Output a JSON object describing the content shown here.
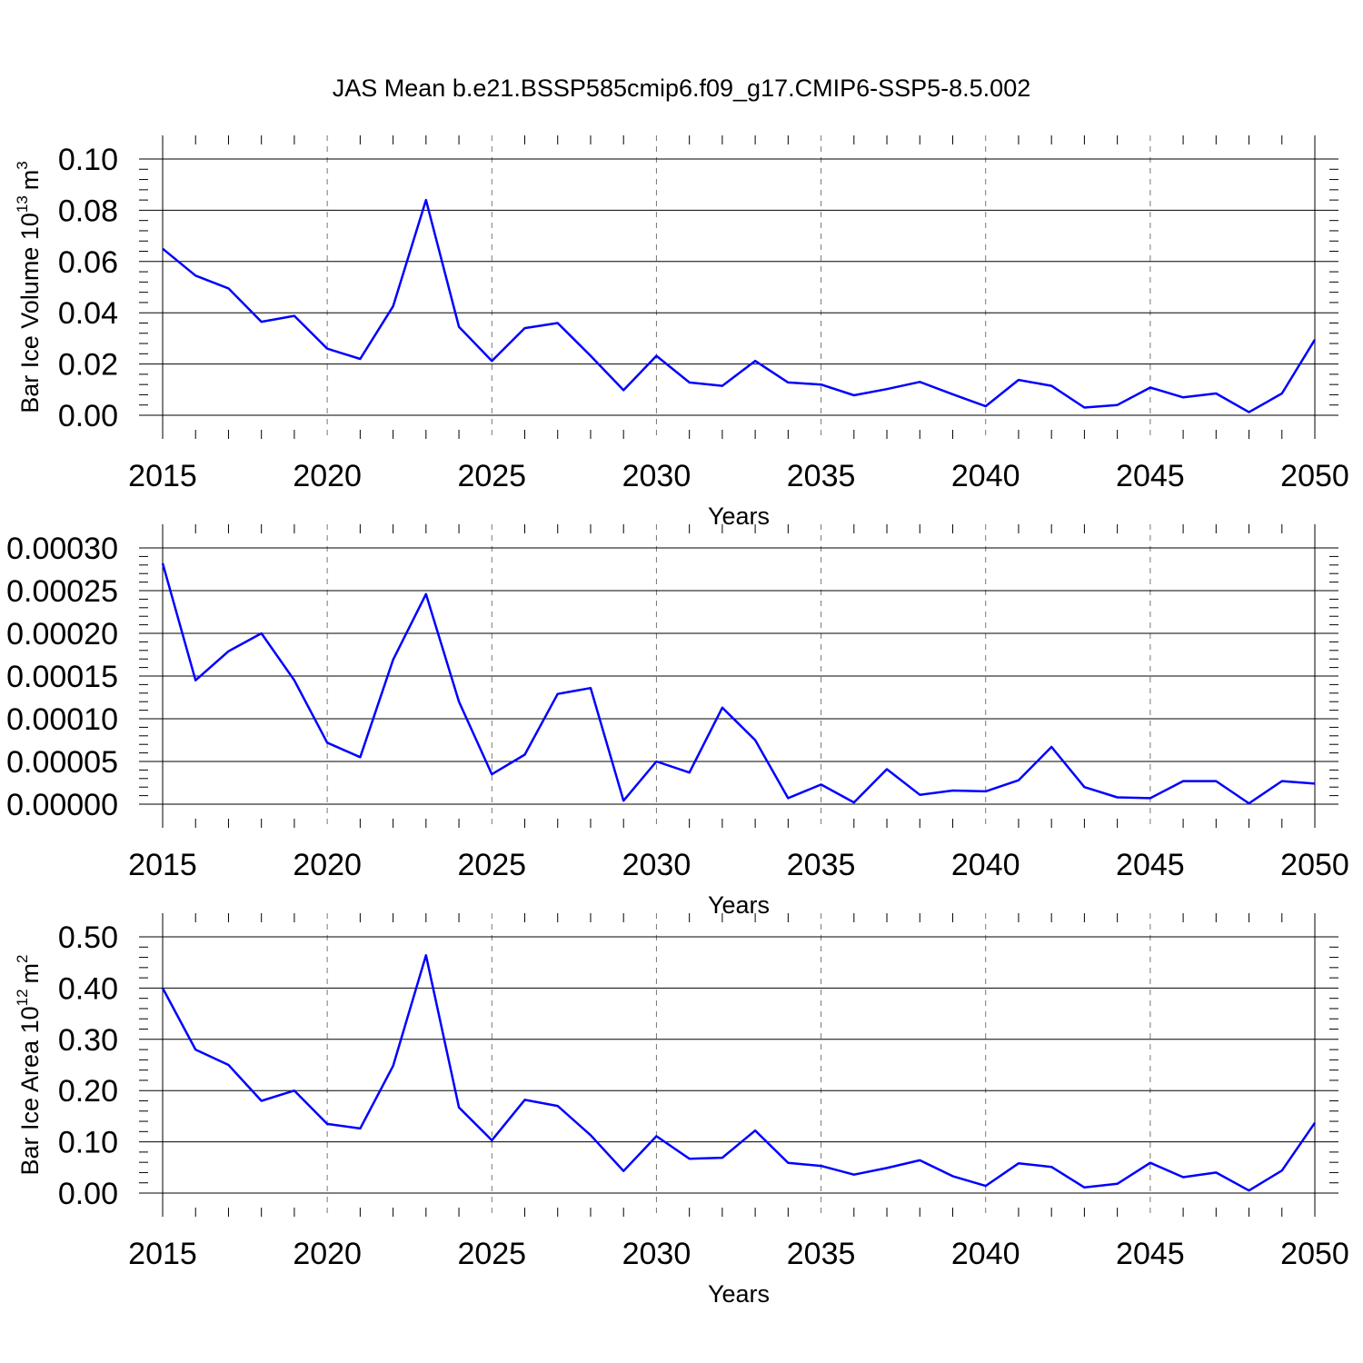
{
  "title": "JAS Mean b.e21.BSSP585cmip6.f09_g17.CMIP6-SSP5-8.5.002",
  "chart_data": [
    {
      "type": "line",
      "xlabel": "Years",
      "ylabel": "Bar Ice Volume 10",
      "ylabel_sup": "13",
      "ylabel_unit": "m",
      "ylabel_unit_sup": "3",
      "xlim": [
        2015,
        2050
      ],
      "ylim": [
        0,
        0.1
      ],
      "xticks": [
        "2015",
        "2020",
        "2025",
        "2030",
        "2035",
        "2040",
        "2045",
        "2050"
      ],
      "yticks": [
        "0.00",
        "0.02",
        "0.04",
        "0.06",
        "0.08",
        "0.10"
      ],
      "grid": "dashed vertical at major x ticks",
      "line_color": "#0000ff",
      "x": [
        2015,
        2016,
        2017,
        2018,
        2019,
        2020,
        2021,
        2022,
        2023,
        2024,
        2025,
        2026,
        2027,
        2028,
        2029,
        2030,
        2031,
        2032,
        2033,
        2034,
        2035,
        2036,
        2037,
        2038,
        2039,
        2040,
        2041,
        2042,
        2043,
        2044,
        2045,
        2046,
        2047,
        2048,
        2049,
        2050
      ],
      "y": [
        0.065,
        0.0545,
        0.0495,
        0.0365,
        0.0388,
        0.026,
        0.022,
        0.0425,
        0.084,
        0.0345,
        0.0212,
        0.034,
        0.036,
        0.0232,
        0.0098,
        0.0232,
        0.0128,
        0.0115,
        0.0212,
        0.0128,
        0.012,
        0.0078,
        0.0102,
        0.013,
        0.0082,
        0.0035,
        0.0138,
        0.0115,
        0.003,
        0.004,
        0.0108,
        0.007,
        0.0085,
        0.0012,
        0.0085,
        0.0295
      ]
    },
    {
      "type": "line",
      "xlabel": "Years",
      "ylabel": "",
      "xlim": [
        2015,
        2050
      ],
      "ylim": [
        0,
        0.0003
      ],
      "xticks": [
        "2015",
        "2020",
        "2025",
        "2030",
        "2035",
        "2040",
        "2045",
        "2050"
      ],
      "yticks": [
        "0.00000",
        "0.00005",
        "0.00010",
        "0.00015",
        "0.00020",
        "0.00025",
        "0.00030"
      ],
      "grid": "dashed vertical at major x ticks",
      "line_color": "#0000ff",
      "x": [
        2015,
        2016,
        2017,
        2018,
        2019,
        2020,
        2021,
        2022,
        2023,
        2024,
        2025,
        2026,
        2027,
        2028,
        2029,
        2030,
        2031,
        2032,
        2033,
        2034,
        2035,
        2036,
        2037,
        2038,
        2039,
        2040,
        2041,
        2042,
        2043,
        2044,
        2045,
        2046,
        2047,
        2048,
        2049,
        2050
      ],
      "y": [
        0.000282,
        0.000145,
        0.000179,
        0.0002,
        0.000145,
        7.2e-05,
        5.5e-05,
        0.000169,
        0.000246,
        0.00012,
        3.5e-05,
        5.8e-05,
        0.000129,
        0.000136,
        4e-06,
        5e-05,
        3.7e-05,
        0.000113,
        7.5e-05,
        7e-06,
        2.3e-05,
        2e-06,
        4.1e-05,
        1.1e-05,
        1.6e-05,
        1.5e-05,
        2.8e-05,
        6.7e-05,
        2e-05,
        8e-06,
        7e-06,
        2.7e-05,
        2.7e-05,
        1e-06,
        2.7e-05,
        2.4e-05
      ]
    },
    {
      "type": "line",
      "xlabel": "Years",
      "ylabel": "Bar Ice Area 10",
      "ylabel_sup": "12",
      "ylabel_unit": "m",
      "ylabel_unit_sup": "2",
      "xlim": [
        2015,
        2050
      ],
      "ylim": [
        0,
        0.5
      ],
      "xticks": [
        "2015",
        "2020",
        "2025",
        "2030",
        "2035",
        "2040",
        "2045",
        "2050"
      ],
      "yticks": [
        "0.00",
        "0.10",
        "0.20",
        "0.30",
        "0.40",
        "0.50"
      ],
      "grid": "dashed vertical at major x ticks",
      "line_color": "#0000ff",
      "x": [
        2015,
        2016,
        2017,
        2018,
        2019,
        2020,
        2021,
        2022,
        2023,
        2024,
        2025,
        2026,
        2027,
        2028,
        2029,
        2030,
        2031,
        2032,
        2033,
        2034,
        2035,
        2036,
        2037,
        2038,
        2039,
        2040,
        2041,
        2042,
        2043,
        2044,
        2045,
        2046,
        2047,
        2048,
        2049,
        2050
      ],
      "y": [
        0.4,
        0.28,
        0.25,
        0.18,
        0.2,
        0.135,
        0.126,
        0.248,
        0.464,
        0.167,
        0.103,
        0.182,
        0.17,
        0.113,
        0.043,
        0.111,
        0.067,
        0.069,
        0.122,
        0.059,
        0.053,
        0.036,
        0.049,
        0.064,
        0.033,
        0.014,
        0.058,
        0.051,
        0.011,
        0.018,
        0.059,
        0.031,
        0.04,
        0.005,
        0.044,
        0.137
      ]
    }
  ]
}
